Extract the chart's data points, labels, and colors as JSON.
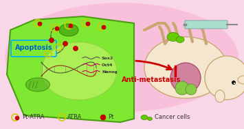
{
  "bg_color": "#f9d6e8",
  "cell_color": "#7fe832",
  "cell_dark_color": "#5ab520",
  "nucleus_color": "#a8e870",
  "apoptosis_color": "#00bfff",
  "apoptosis_text": "Apoptosis",
  "arrow_color": "#cc0000",
  "anti_text": "Anti-metastasis",
  "legend_items": [
    {
      "label": "Pt-ATRA",
      "ring_color": "#cccc00",
      "dot_color": "#cc0000"
    },
    {
      "label": "ATRA",
      "ring_color": "#cccc00",
      "dot_color": null
    },
    {
      "label": "Pt",
      "ring_color": null,
      "dot_color": "#cc0000"
    },
    {
      "label": "Cancer cells",
      "color": "#66cc00"
    }
  ],
  "sox2_text": "Sox2",
  "oct4_text": "Oct4",
  "nanog_text": "Nanog",
  "mouse_body_color": "#f5e6d0",
  "tumor_color": "#cc7799",
  "syringe_color": "#aaddcc",
  "figsize": [
    3.55,
    1.89
  ],
  "dpi": 100
}
